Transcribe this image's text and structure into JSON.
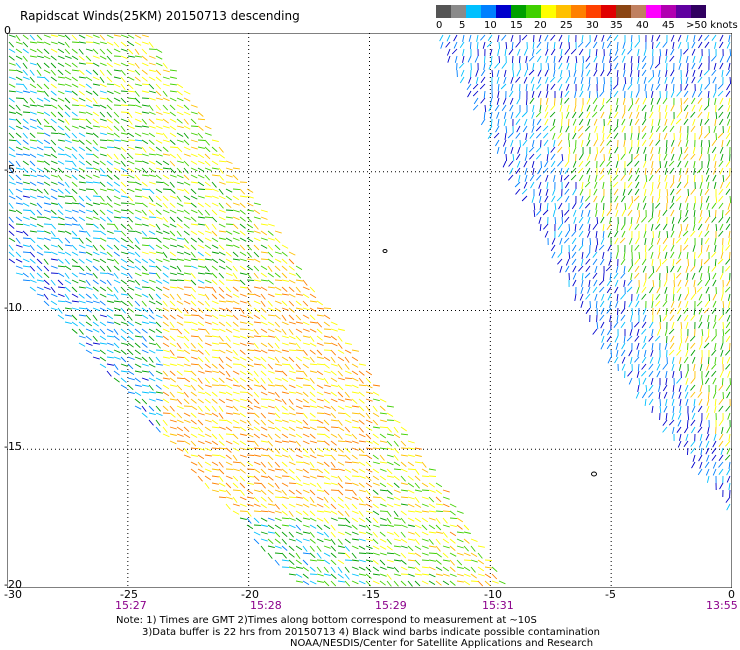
{
  "title": "Rapidscat Winds(25KM) 20150713 descending",
  "legend": {
    "colors": [
      "#555555",
      "#8a8a8a",
      "#00c0ff",
      "#0080ff",
      "#0000cc",
      "#00a000",
      "#40d000",
      "#ffff00",
      "#ffc000",
      "#ff8000",
      "#ff4000",
      "#e00000",
      "#8b4513",
      "#c08060",
      "#ff00ff",
      "#b000b0",
      "#6000a0",
      "#300060"
    ],
    "labels": [
      "0",
      "5",
      "10",
      "15",
      "20",
      "25",
      "30",
      "35",
      "40",
      "45",
      ">50 knots"
    ]
  },
  "axes": {
    "x_ticks": [
      "-30",
      "-25",
      "-20",
      "-15",
      "-10",
      "-5",
      "0"
    ],
    "y_ticks": [
      "0",
      "-5",
      "-10",
      "-15",
      "-20"
    ],
    "times": [
      "15:27",
      "15:28",
      "15:29",
      "15:31",
      "13:55"
    ]
  },
  "notes": [
    "Note: 1) Times are GMT 2)Times along bottom correspond to measurement at ~10S",
    "3)Data buffer is 22 hrs from 20150713 4) Black wind barbs indicate possible contamination",
    "NOAA/NESDIS/Center for Satellite Applications and Research"
  ],
  "map": {
    "lon_range": [
      -30,
      0
    ],
    "lat_range": [
      -20,
      0
    ],
    "grid": "dotted every 5 degrees",
    "swaths": 2
  }
}
